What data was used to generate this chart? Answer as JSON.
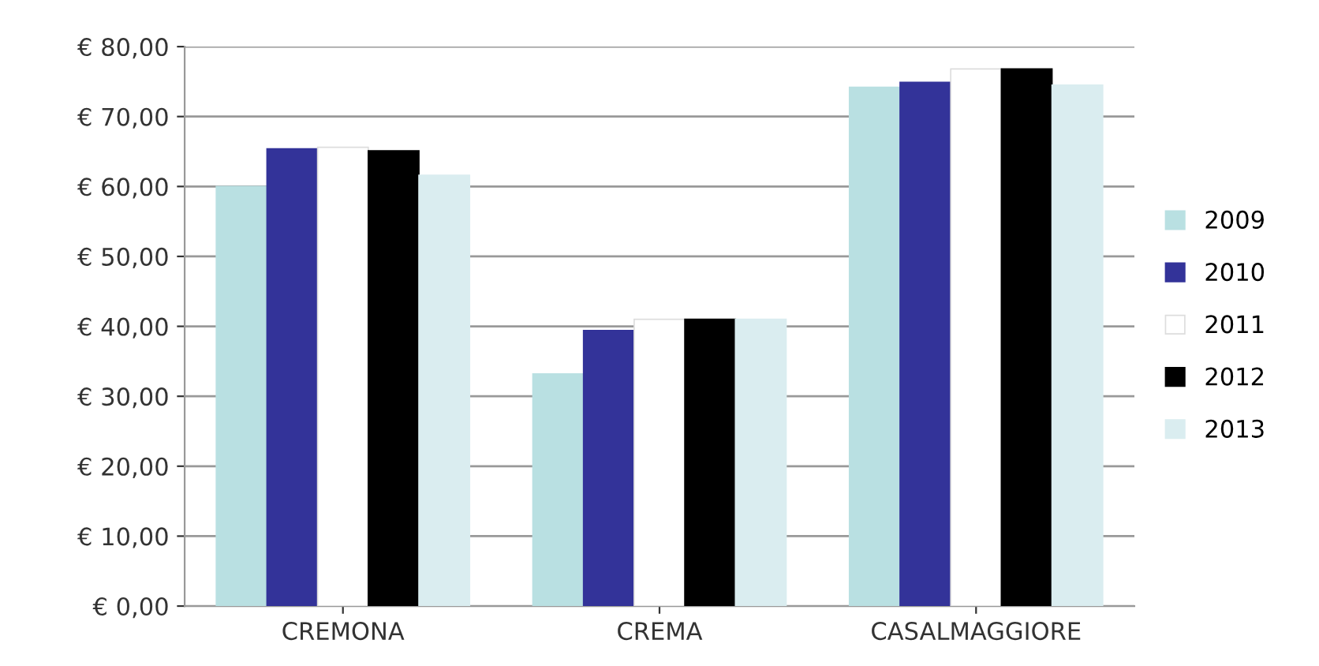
{
  "chart_data": {
    "type": "bar",
    "categories": [
      "CREMONA",
      "CREMA",
      "CASALMAGGIORE"
    ],
    "series": [
      {
        "name": "2009",
        "color": "#b9e0e2",
        "values": [
          60,
          33.2,
          74.2
        ]
      },
      {
        "name": "2010",
        "color": "#333399",
        "values": [
          65.4,
          39.4,
          74.9
        ]
      },
      {
        "name": "2011",
        "color": "#ffffff",
        "values": [
          65.6,
          41,
          76.8
        ]
      },
      {
        "name": "2012",
        "color": "#000000",
        "values": [
          65.1,
          41,
          76.8
        ]
      },
      {
        "name": "2013",
        "color": "#daedf0",
        "values": [
          61.6,
          41,
          74.5
        ]
      }
    ],
    "ylim": [
      0,
      80
    ],
    "yticks": [
      {
        "value": 0,
        "label": "€ 0,00"
      },
      {
        "value": 10,
        "label": "€ 10,00"
      },
      {
        "value": 20,
        "label": "€ 20,00"
      },
      {
        "value": 30,
        "label": "€ 30,00"
      },
      {
        "value": 40,
        "label": "€ 40,00"
      },
      {
        "value": 50,
        "label": "€ 50,00"
      },
      {
        "value": 60,
        "label": "€ 60,00"
      },
      {
        "value": 70,
        "label": "€ 70,00"
      },
      {
        "value": 80,
        "label": "€ 80,00"
      }
    ],
    "grid": "y",
    "legend": "right"
  }
}
